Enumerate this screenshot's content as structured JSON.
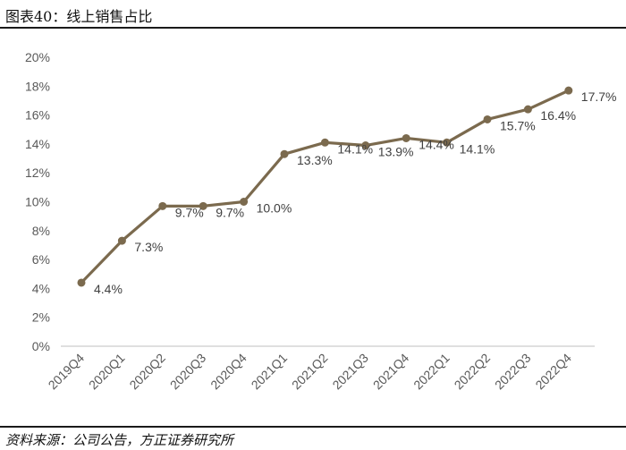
{
  "header": {
    "title": "图表40：线上销售占比"
  },
  "footer": {
    "source": "资料来源：公司公告，方正证券研究所"
  },
  "chart_data": {
    "type": "line",
    "title": "",
    "xlabel": "",
    "ylabel": "",
    "categories": [
      "2019Q4",
      "2020Q1",
      "2020Q2",
      "2020Q3",
      "2020Q4",
      "2021Q1",
      "2021Q2",
      "2021Q3",
      "2021Q4",
      "2022Q1",
      "2022Q2",
      "2022Q3",
      "2022Q4"
    ],
    "series": [
      {
        "values": [
          4.4,
          7.3,
          9.7,
          9.7,
          10.0,
          13.3,
          14.1,
          13.9,
          14.4,
          14.1,
          15.7,
          16.4,
          17.7
        ]
      }
    ],
    "data_labels": [
      "4.4%",
      "7.3%",
      "9.7%",
      "9.7%",
      "10.0%",
      "13.3%",
      "14.1%",
      "13.9%",
      "14.4%",
      "14.1%",
      "15.7%",
      "16.4%",
      "17.7%"
    ],
    "yticks": [
      "0%",
      "2%",
      "4%",
      "6%",
      "8%",
      "10%",
      "12%",
      "14%",
      "16%",
      "18%",
      "20%"
    ],
    "ylim": [
      0,
      20
    ],
    "grid": false,
    "legend": "none",
    "line_color": "#7b6a4e"
  }
}
